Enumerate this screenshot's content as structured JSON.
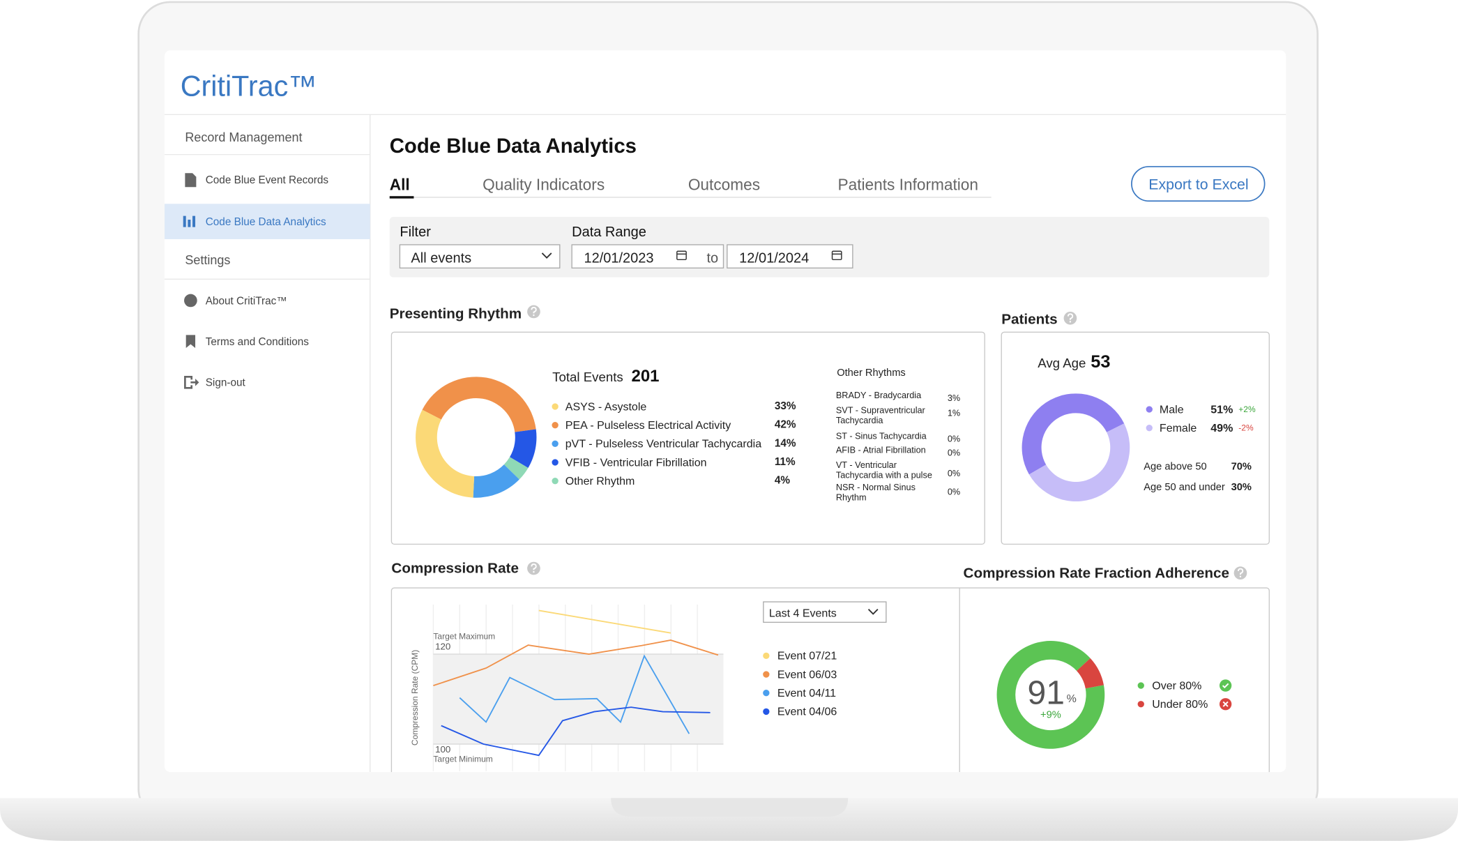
{
  "brand": "CritiTrac™",
  "sidebar": {
    "items": [
      {
        "label": "Record Management",
        "kind": "section"
      },
      {
        "label": "Code Blue Event Records",
        "kind": "item"
      },
      {
        "label": "Code Blue Data Analytics",
        "kind": "active"
      },
      {
        "label": "Settings",
        "kind": "section"
      },
      {
        "label": "About CritiTrac™",
        "kind": "item"
      },
      {
        "label": "Terms and Conditions",
        "kind": "item"
      },
      {
        "label": "Sign-out",
        "kind": "item"
      }
    ]
  },
  "page_title": "Code Blue Data Analytics",
  "tabs": [
    "All",
    "Quality Indicators",
    "Outcomes",
    "Patients Information"
  ],
  "export_button": "Export to Excel",
  "filter": {
    "label": "Filter",
    "value": "All events"
  },
  "date_range": {
    "label": "Data Range",
    "from": "12/01/2023",
    "to_label": "to",
    "to": "12/01/2024"
  },
  "presenting_rhythm": {
    "title": "Presenting Rhythm",
    "total_label": "Total Events",
    "total": 201,
    "rhythms": [
      {
        "label": "ASYS - Asystole",
        "value": 33,
        "value_label": "33%",
        "color": "#fbd977"
      },
      {
        "label": "PEA - Pulseless Electrical Activity",
        "value": 42,
        "value_label": "42%",
        "color": "#f0914a"
      },
      {
        "label": "pVT - Pulseless Ventricular Tachycardia",
        "value": 14,
        "value_label": "14%",
        "color": "#4a9fee"
      },
      {
        "label": "VFIB - Ventricular Fibrillation",
        "value": 11,
        "value_label": "11%",
        "color": "#2457e6"
      },
      {
        "label": "Other Rhythm",
        "value": 4,
        "value_label": "4%",
        "color": "#8fd9b6"
      }
    ],
    "other_title": "Other Rhythms",
    "others": [
      {
        "label": "BRADY - Bradycardia",
        "value_label": "3%"
      },
      {
        "label": "SVT - Supraventricular Tachycardia",
        "value_label": "1%"
      },
      {
        "label": "ST - Sinus Tachycardia",
        "value_label": "0%"
      },
      {
        "label": "AFIB - Atrial Fibrillation",
        "value_label": "0%"
      },
      {
        "label": "VT - Ventricular Tachycardia with a pulse",
        "value_label": "0%"
      },
      {
        "label": "NSR - Normal Sinus Rhythm",
        "value_label": "0%"
      }
    ]
  },
  "patients": {
    "title": "Patients",
    "avg_age_label": "Avg Age",
    "avg_age": 53,
    "gender": [
      {
        "label": "Male",
        "value": 51,
        "value_label": "51%",
        "change": "+2%",
        "color": "#8e7ff0"
      },
      {
        "label": "Female",
        "value": 49,
        "value_label": "49%",
        "change": "-2%",
        "color": "#c6bdf8"
      }
    ],
    "age_groups": [
      {
        "label": "Age above 50",
        "value_label": "70%"
      },
      {
        "label": "Age 50 and under",
        "value_label": "30%"
      }
    ]
  },
  "compression_rate": {
    "type": "line",
    "title": "Compression Rate",
    "dropdown": "Last 4 Events",
    "y_label": "Compression Rate (CPM)",
    "ylim": [
      94,
      131
    ],
    "xlim": [
      0,
      11
    ],
    "yticks": [
      120,
      100
    ],
    "annotations": [
      "Target Maximum",
      "Target Minimum"
    ],
    "series": [
      {
        "name": "Event 07/21",
        "color": "#fbd977",
        "x": [
          4,
          9
        ],
        "values": [
          129.7,
          124.7
        ]
      },
      {
        "name": "Event 06/03",
        "color": "#f0914a",
        "x": [
          0,
          2,
          3.6,
          5.9,
          7.9,
          9,
          10.8
        ],
        "values": [
          113,
          116.9,
          122,
          120,
          121.9,
          123.1,
          119.8
        ]
      },
      {
        "name": "Event 04/11",
        "color": "#4a9fee",
        "x": [
          1,
          2,
          2.9,
          4.6,
          6.2,
          7.1,
          8,
          9.7
        ],
        "values": [
          110.3,
          104.9,
          114.8,
          109.9,
          110.1,
          104.9,
          119.6,
          102.3
        ]
      },
      {
        "name": "Event 04/06",
        "color": "#2457e6",
        "x": [
          0.3,
          1.9,
          4,
          4.9,
          6.1,
          7.5,
          8.7,
          10.5
        ],
        "values": [
          104.1,
          100,
          97.5,
          105.2,
          107.2,
          108.2,
          107.2,
          107
        ]
      }
    ]
  },
  "adherence": {
    "title": "Compression Rate Fraction Adherence",
    "value": 91,
    "unit": "%",
    "change": "+9%",
    "segments": [
      {
        "name": "Over 80%",
        "value": 91,
        "color": "#5cc454"
      },
      {
        "name": "Under 80%",
        "value": 9,
        "color": "#d9453f"
      }
    ]
  }
}
